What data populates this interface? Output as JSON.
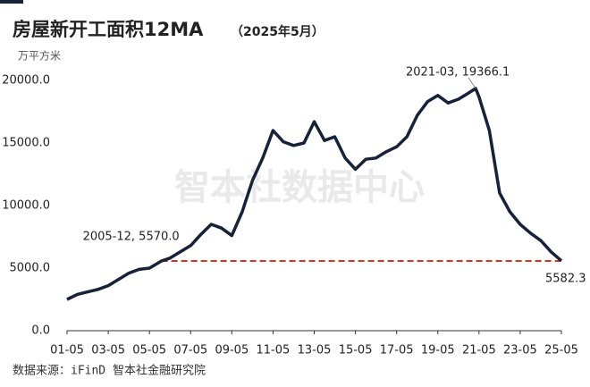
{
  "chart_data": {
    "type": "line",
    "title": "房屋新开工面积12MA",
    "subtitle": "（2025年5月）",
    "unit": "万平方米",
    "watermark": "智本社数据中心",
    "source": "数据来源：iFinD 智本社金融研究院",
    "color": "#16213a",
    "x": [
      "01-05",
      "01-11",
      "02-05",
      "02-11",
      "03-05",
      "03-11",
      "04-05",
      "04-11",
      "05-05",
      "05-12",
      "06-05",
      "06-11",
      "07-05",
      "07-11",
      "08-05",
      "08-11",
      "09-05",
      "09-11",
      "10-05",
      "10-11",
      "11-05",
      "11-11",
      "12-05",
      "12-11",
      "13-05",
      "13-11",
      "14-05",
      "14-11",
      "15-05",
      "15-11",
      "16-05",
      "16-11",
      "17-05",
      "17-11",
      "18-05",
      "18-11",
      "19-05",
      "19-11",
      "20-05",
      "20-11",
      "21-03",
      "21-05",
      "21-11",
      "22-05",
      "22-11",
      "23-05",
      "23-11",
      "24-05",
      "24-11",
      "25-05"
    ],
    "values": [
      2500,
      2900,
      3100,
      3300,
      3600,
      4100,
      4600,
      4900,
      5000,
      5570.0,
      5800,
      6300,
      6800,
      7700,
      8500,
      8200,
      7600,
      9500,
      12000,
      13800,
      16000,
      15100,
      14800,
      15000,
      16700,
      15200,
      15500,
      13800,
      12900,
      13700,
      13800,
      14300,
      14700,
      15500,
      17200,
      18300,
      18800,
      18200,
      18500,
      19000,
      19366.1,
      18700,
      16000,
      11000,
      9500,
      8500,
      7800,
      7200,
      6300,
      5582.3
    ],
    "xlim": [
      "01-05",
      "25-05"
    ],
    "xticks": [
      "01-05",
      "03-05",
      "05-05",
      "07-05",
      "09-05",
      "11-05",
      "13-05",
      "15-05",
      "17-05",
      "19-05",
      "21-05",
      "23-05",
      "25-05"
    ],
    "ylim": [
      0,
      21000
    ],
    "yticks": [
      {
        "value": 0,
        "label": "0.0"
      },
      {
        "value": 5000,
        "label": "5000.0"
      },
      {
        "value": 10000,
        "label": "10000.0"
      },
      {
        "value": 15000,
        "label": "15000.0"
      },
      {
        "value": 20000,
        "label": "20000.0"
      }
    ],
    "annotations": [
      {
        "x": "05-12",
        "text": "2005-12, 5570.0"
      },
      {
        "x": "21-03",
        "text": "2021-03, 19366.1"
      },
      {
        "x": "25-05",
        "text": "5582.3"
      }
    ],
    "reference_line": {
      "from": "05-12",
      "to": "25-05",
      "color": "#e0301e"
    }
  }
}
